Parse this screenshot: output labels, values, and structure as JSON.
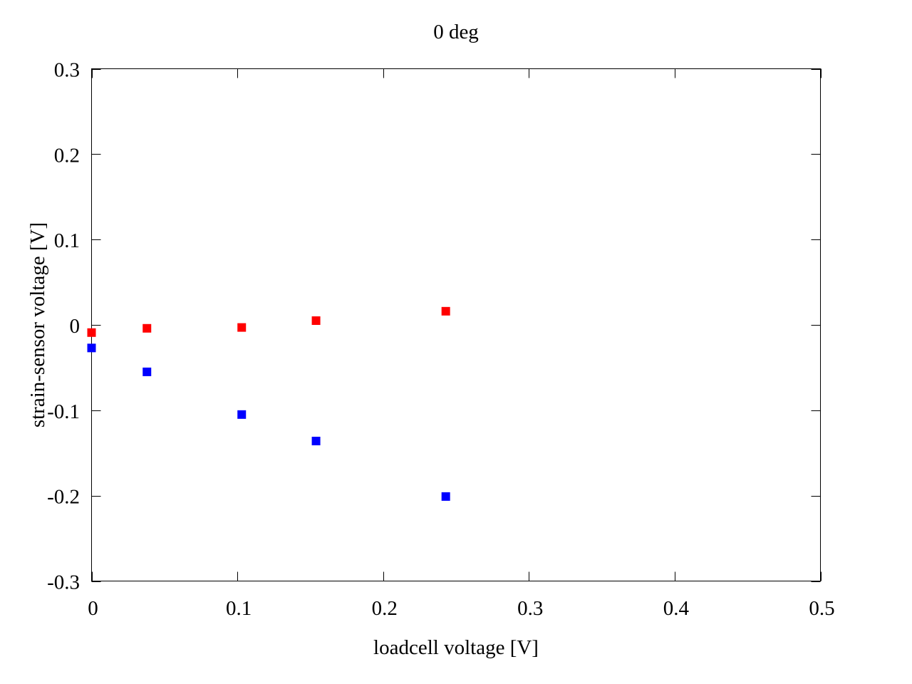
{
  "chart_data": {
    "type": "scatter",
    "title": "0 deg",
    "xlabel": "loadcell voltage [V]",
    "ylabel": "strain-sensor voltage [V]",
    "xlim": [
      0,
      0.5
    ],
    "ylim": [
      -0.3,
      0.3
    ],
    "x_ticks": [
      0,
      0.1,
      0.2,
      0.3,
      0.4,
      0.5
    ],
    "x_tick_labels": [
      "0",
      "0.1",
      "0.2",
      "0.3",
      "0.4",
      "0.5"
    ],
    "y_ticks": [
      -0.3,
      -0.2,
      -0.1,
      0,
      0.1,
      0.2,
      0.3
    ],
    "y_tick_labels": [
      "-0.3",
      "-0.2",
      "-0.1",
      "0",
      "0.1",
      "0.2",
      "0.3"
    ],
    "grid": false,
    "legend": "none",
    "marker": "square",
    "series": [
      {
        "color": "#ff0000",
        "x": [
          0.0,
          0.038,
          0.103,
          0.154,
          0.243
        ],
        "y": [
          -0.009,
          -0.004,
          -0.003,
          0.005,
          0.016
        ]
      },
      {
        "color": "#0000ff",
        "x": [
          0.0,
          0.038,
          0.103,
          0.154,
          0.243
        ],
        "y": [
          -0.027,
          -0.055,
          -0.105,
          -0.136,
          -0.201
        ]
      }
    ]
  }
}
